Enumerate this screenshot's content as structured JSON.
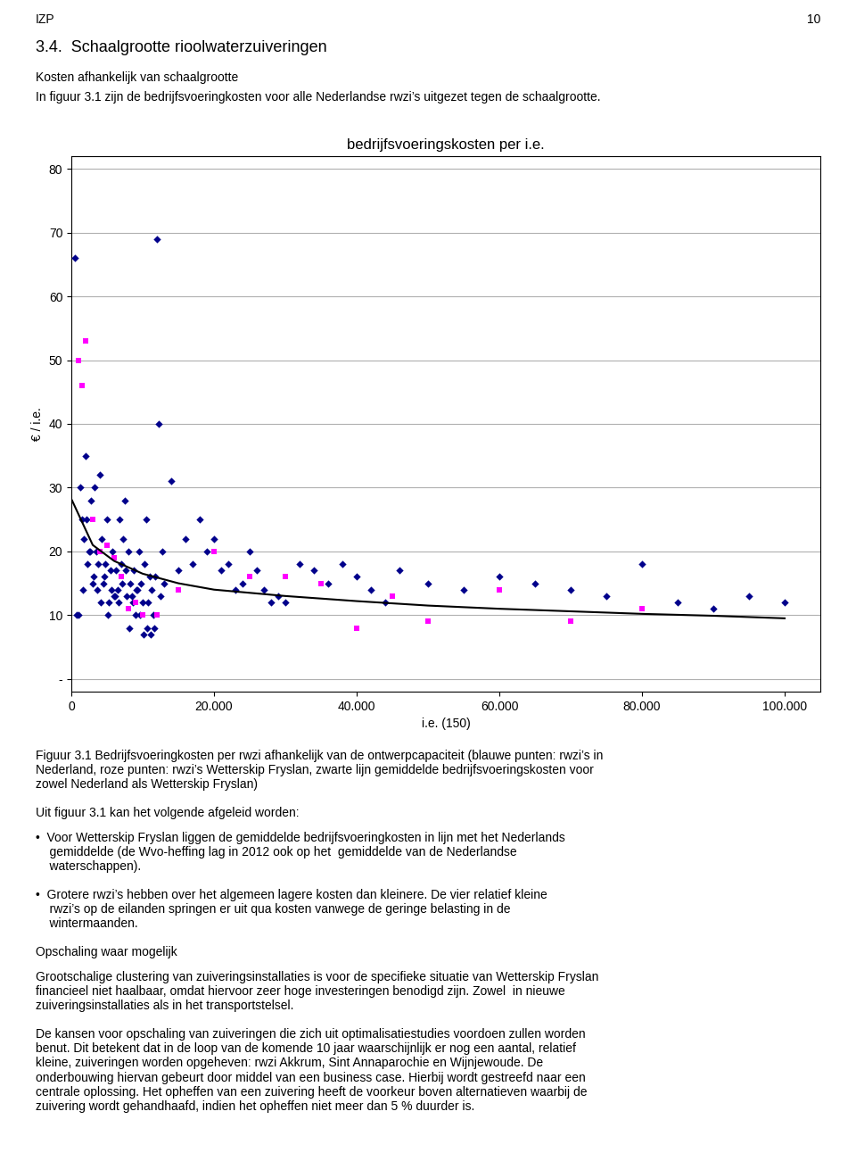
{
  "chart_data": {
    "type": "scatter",
    "title": "bedrijfsvoeringskosten per i.e.",
    "x_label": "i.e. (150)",
    "y_label": "€ / i.e.",
    "xlim": [
      0,
      105000
    ],
    "ylim": [
      -2,
      82
    ],
    "xticks": [
      0,
      {
        "value": 20000,
        "label": "20.000"
      },
      {
        "value": 40000,
        "label": "40.000"
      },
      {
        "value": 60000,
        "label": "60.000"
      },
      {
        "value": 80000,
        "label": "80.000"
      },
      {
        "value": 100000,
        "label": "100.000"
      }
    ],
    "yticks": [
      {
        "value": 0,
        "label": "-"
      },
      10,
      20,
      30,
      40,
      50,
      60,
      70,
      80
    ],
    "grid": "y",
    "series": [
      {
        "type": "scatter",
        "color": "#00008B",
        "marker": "D",
        "x": [
          500,
          800,
          1200,
          1500,
          1800,
          2000,
          2200,
          2500,
          2800,
          3000,
          3200,
          3500,
          3800,
          4000,
          4200,
          4500,
          4800,
          5000,
          5200,
          5500,
          5800,
          6000,
          6200,
          6500,
          6800,
          7000,
          7200,
          7500,
          7800,
          8000,
          8200,
          8500,
          8800,
          9000,
          9200,
          9500,
          9800,
          10000,
          10200,
          10500,
          10800,
          11000,
          11200,
          11500,
          11800,
          12000,
          12200,
          12500,
          12800,
          13000,
          14000,
          15000,
          16000,
          17000,
          18000,
          19000,
          20000,
          21000,
          22000,
          23000,
          24000,
          25000,
          26000,
          27000,
          28000,
          29000,
          30000,
          32000,
          34000,
          36000,
          38000,
          40000,
          42000,
          44000,
          46000,
          50000,
          55000,
          60000,
          65000,
          70000,
          75000,
          80000,
          85000,
          90000,
          95000,
          100000,
          1000,
          1600,
          2100,
          2600,
          3100,
          3600,
          4100,
          4600,
          5100,
          5600,
          6100,
          6600,
          7100,
          7600,
          8100,
          8600,
          9100,
          9600,
          10100,
          10600,
          11100,
          11600
        ],
        "values": [
          66,
          10,
          30,
          25,
          22,
          35,
          18,
          20,
          28,
          15,
          30,
          20,
          18,
          32,
          22,
          15,
          18,
          25,
          12,
          17,
          20,
          13,
          17,
          14,
          25,
          18,
          22,
          28,
          13,
          20,
          15,
          13,
          17,
          10,
          14,
          20,
          15,
          12,
          18,
          25,
          12,
          16,
          14,
          10,
          16,
          69,
          40,
          13,
          20,
          15,
          31,
          17,
          22,
          18,
          25,
          20,
          22,
          17,
          18,
          14,
          15,
          20,
          17,
          14,
          12,
          13,
          12,
          18,
          17,
          15,
          18,
          16,
          14,
          12,
          17,
          15,
          14,
          16,
          15,
          14,
          13,
          18,
          12,
          11,
          13,
          12,
          10,
          14,
          25,
          20,
          16,
          14,
          12,
          16,
          10,
          14,
          13,
          12,
          15,
          17,
          8,
          12,
          14,
          10,
          7,
          8,
          7,
          8
        ]
      },
      {
        "type": "scatter",
        "color": "#FF00FF",
        "marker": "s",
        "x": [
          1000,
          1500,
          2000,
          3000,
          4000,
          5000,
          6000,
          7000,
          8000,
          9000,
          10000,
          12000,
          15000,
          20000,
          25000,
          30000,
          35000,
          40000,
          45000,
          50000,
          60000,
          70000,
          80000
        ],
        "values": [
          50,
          46,
          53,
          25,
          20,
          21,
          19,
          16,
          11,
          12,
          10,
          10,
          14,
          20,
          16,
          16,
          15,
          8,
          13,
          9,
          14,
          9,
          11
        ]
      },
      {
        "type": "line",
        "color": "#000000",
        "line_style": "solid",
        "x": [
          100,
          3000,
          6000,
          10000,
          15000,
          20000,
          30000,
          40000,
          50000,
          60000,
          70000,
          80000,
          90000,
          100000
        ],
        "values": [
          28,
          21,
          18.5,
          16.5,
          15,
          14,
          13,
          12.2,
          11.5,
          11.0,
          10.6,
          10.2,
          9.9,
          9.5
        ]
      }
    ],
    "header": {
      "left": "IZP",
      "right": "10"
    },
    "annotations": {
      "above": [
        "3.4.  Schaalgrootte rioolwaterzuiveringen",
        "Kosten afhankelijk van schaalgrootte",
        "In figuur 3.1 zijn de bedrijfsvoeringkosten voor alle Nederlandse rwzi’s uitgezet tegen de schaalgrootte."
      ],
      "below": [
        "Figuur 3.1 Bedrijfsvoeringkosten per rwzi afhankelijk van de ontwerpcapaciteit (blauwe punten: rwzi’s in\nNederland, roze punten: rwzi’s Wetterskip Fryslan, zwarte lijn gemiddelde bedrijfsvoeringskosten voor\nzowel Nederland als Wetterskip Fryslan)",
        "Uit figuur 3.1 kan het volgende afgeleid worden:",
        "•  Voor Wetterskip Fryslan liggen de gemiddelde bedrijfsvoeringkosten in lijn met het Nederlands\n    gemiddelde (de Wvo-heffing lag in 2012 ook op het  gemiddelde van de Nederlandse\n    waterschappen).",
        "•  Grotere rwzi’s hebben over het algemeen lagere kosten dan kleinere. De vier relatief kleine\n    rwzi’s op de eilanden springen er uit qua kosten vanwege de geringe belasting in de\n    wintermaanden.",
        "Opschaling waar mogelijk",
        "Grootschalige clustering van zuiveringsinstallaties is voor de specifieke situatie van Wetterskip Fryslan\nfinancieel niet haalbaar, omdat hiervoor zeer hoge investeringen benodigd zijn. Zowel  in nieuwe\nzuiveringsinstallaties als in het transportstelsel.",
        "De kansen voor opschaling van zuiveringen die zich uit optimalisatiestudies voordoen zullen worden\nbenut. Dit betekent dat in de loop van de komende 10 jaar waarschijnlijk er nog een aantal, relatief\nkleine, zuiveringen worden opgeheven: rwzi Akkrum, Sint Annaparochie en Wijnjewoude. De\nonderbouwing hiervan gebeurt door middel van een business case. Hierbij wordt gestreefd naar een\ncentrale oplossing. Het opheffen van een zuivering heeft de voorkeur boven alternatieven waarbij de\nzuivering wordt gehandhaafd, indien het opheffen niet meer dan 5 % duurder is."
      ]
    }
  }
}
